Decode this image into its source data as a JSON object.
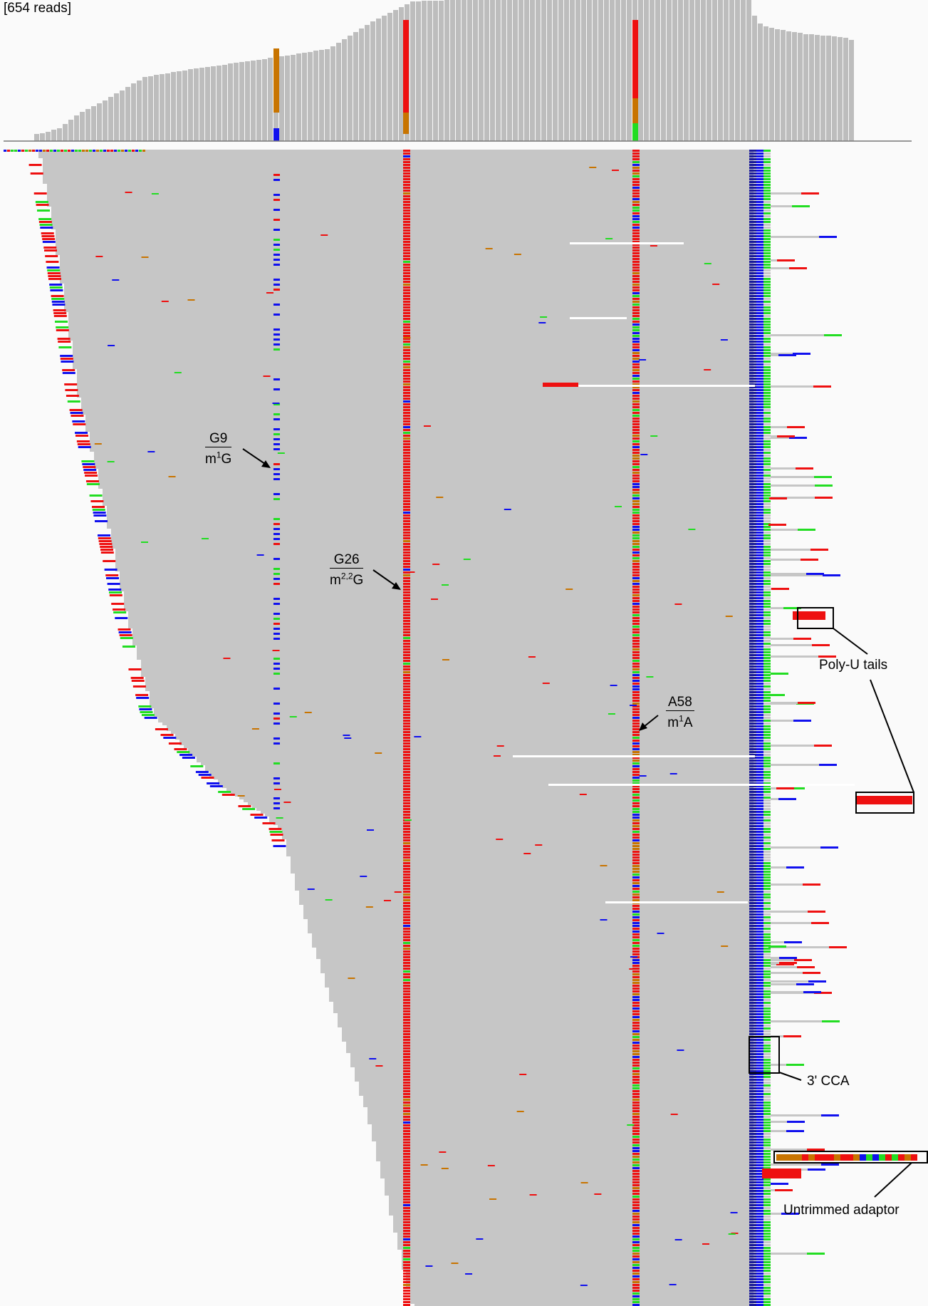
{
  "coverage": {
    "read_count_label": "[654 reads]"
  },
  "modifications": [
    {
      "id": "g9",
      "base": "G9",
      "modified_prefix": "m",
      "modified_sup": "1",
      "modified_suffix": "G"
    },
    {
      "id": "g26",
      "base": "G26",
      "modified_prefix": "m",
      "modified_sup": "2,2",
      "modified_suffix": "G"
    },
    {
      "id": "a58",
      "base": "A58",
      "modified_prefix": "m",
      "modified_sup": "1",
      "modified_suffix": "A"
    }
  ],
  "annotations": {
    "poly_u": "Poly-U tails",
    "cca": "3' CCA",
    "adaptor": "Untrimmed adaptor"
  },
  "colors": {
    "read": "#c6c6c6",
    "coverage_bar": "#bdbdbd",
    "mismatch_a": "#22dd22",
    "mismatch_c": "#1010ee",
    "mismatch_g": "#c87400",
    "mismatch_t": "#ee1010",
    "background": "#fafafa"
  }
}
